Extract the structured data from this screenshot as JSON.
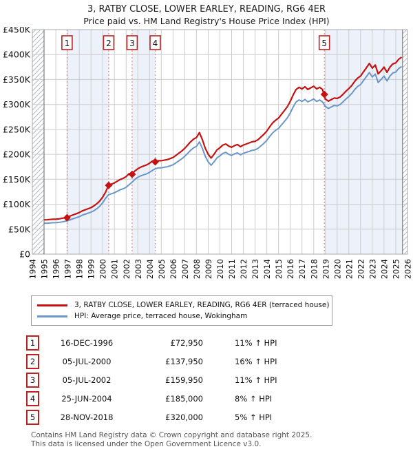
{
  "title": "3, RATBY CLOSE, LOWER EARLEY, READING, RG6 4ER",
  "subtitle": "Price paid vs. HM Land Registry's House Price Index (HPI)",
  "legend": {
    "property_label": "3, RATBY CLOSE, LOWER EARLEY, READING, RG6 4ER (terraced house)",
    "hpi_label": "HPI: Average price, terraced house, Wokingham"
  },
  "colors": {
    "property_line": "#c41111",
    "hpi_line": "#6a96c8",
    "sale_dashed_line": "#f28080",
    "badge_border": "#bb2222",
    "grid": "#cccccc",
    "plot_border": "#aaaaaa",
    "data_edge": "#666666",
    "ownership_band": "#edf2fa",
    "hatch_line": "#b4b8c0",
    "footer_text": "#555555"
  },
  "transactions": [
    {
      "num": "1",
      "date": "16-DEC-1996",
      "price": "£72,950",
      "hpi_diff": "11% ↑ HPI"
    },
    {
      "num": "2",
      "date": "05-JUL-2000",
      "price": "£137,950",
      "hpi_diff": "16% ↑ HPI"
    },
    {
      "num": "3",
      "date": "05-JUL-2002",
      "price": "£159,950",
      "hpi_diff": "11% ↑ HPI"
    },
    {
      "num": "4",
      "date": "25-JUN-2004",
      "price": "£185,000",
      "hpi_diff": "8% ↑ HPI"
    },
    {
      "num": "5",
      "date": "28-NOV-2018",
      "price": "£320,000",
      "hpi_diff": "5% ↑ HPI"
    }
  ],
  "footer": {
    "line1": "Contains HM Land Registry data © Crown copyright and database right 2025.",
    "line2": "This data is licensed under the Open Government Licence v3.0."
  },
  "chart_data": {
    "type": "line",
    "xlim": [
      1994,
      2026
    ],
    "ylim": [
      0,
      450000
    ],
    "x_ticks": [
      1994,
      1995,
      1996,
      1997,
      1998,
      1999,
      2000,
      2001,
      2002,
      2003,
      2004,
      2005,
      2006,
      2007,
      2008,
      2009,
      2010,
      2011,
      2012,
      2013,
      2014,
      2015,
      2016,
      2017,
      2018,
      2019,
      2020,
      2021,
      2022,
      2023,
      2024,
      2025,
      2026
    ],
    "y_ticks": [
      {
        "value_k": 450,
        "label": "£450K"
      },
      {
        "value_k": 400,
        "label": "£400K"
      },
      {
        "value_k": 350,
        "label": "£350K"
      },
      {
        "value_k": 300,
        "label": "£300K"
      },
      {
        "value_k": 250,
        "label": "£250K"
      },
      {
        "value_k": 200,
        "label": "£200K"
      },
      {
        "value_k": 150,
        "label": "£150K"
      },
      {
        "value_k": 100,
        "label": "£100K"
      },
      {
        "value_k": 50,
        "label": "£50K"
      },
      {
        "value_k": 0,
        "label": "£0"
      }
    ],
    "x_start": 1995.0,
    "x_step": 0.25,
    "series": [
      {
        "name": "3, RATBY CLOSE, LOWER EARLEY, READING, RG6 4ER (terraced house)",
        "color_key": "property_line",
        "values_k": [
          68.8,
          68.8,
          69.4,
          69.9,
          69.9,
          70.5,
          71.6,
          72.7,
          74.4,
          76.6,
          78.8,
          81.0,
          83.3,
          86.6,
          88.8,
          91.0,
          93.2,
          96.6,
          101.0,
          106.6,
          114.3,
          124.3,
          138.0,
          140.4,
          142.7,
          146.2,
          149.6,
          152.0,
          155.4,
          161.2,
          160.0,
          166.7,
          171.1,
          174.4,
          176.7,
          178.9,
          182.2,
          186.6,
          185.0,
          187.2,
          187.2,
          188.3,
          189.4,
          191.5,
          193.7,
          198.0,
          202.3,
          206.7,
          212.1,
          218.6,
          225.1,
          230.5,
          233.7,
          243.5,
          229.4,
          212.1,
          200.2,
          192.6,
          200.2,
          208.8,
          213.2,
          218.6,
          220.7,
          216.4,
          214.2,
          217.5,
          219.6,
          215.3,
          218.6,
          220.7,
          222.9,
          225.1,
          226.1,
          229.4,
          234.8,
          240.2,
          246.7,
          255.4,
          262.9,
          268.3,
          272.7,
          280.2,
          287.8,
          295.4,
          306.2,
          319.2,
          330.0,
          334.3,
          331.1,
          335.4,
          330.0,
          333.3,
          336.5,
          331.1,
          334.3,
          330.0,
          310.8,
          306.6,
          309.8,
          312.9,
          311.9,
          315.0,
          320.3,
          326.6,
          331.8,
          338.1,
          346.5,
          352.8,
          357.0,
          365.4,
          373.8,
          382.2,
          372.8,
          379.1,
          361.2,
          367.5,
          374.9,
          364.4,
          374.9,
          381.2,
          383.3,
          390.6,
          394.8
        ]
      },
      {
        "name": "HPI: Average price, terraced house, Wokingham",
        "color_key": "hpi_line",
        "values_k": [
          62.0,
          62.0,
          62.5,
          63.0,
          63.0,
          63.5,
          64.5,
          65.5,
          67.0,
          69.0,
          71.0,
          73.0,
          75.0,
          78.0,
          80.0,
          82.0,
          84.0,
          87.0,
          91.0,
          96.0,
          103.0,
          112.0,
          119.0,
          121.0,
          123.0,
          126.0,
          129.0,
          131.0,
          134.0,
          139.0,
          144.0,
          150.0,
          154.0,
          157.0,
          159.0,
          161.0,
          164.0,
          168.0,
          171.0,
          173.0,
          173.0,
          174.0,
          175.0,
          177.0,
          179.0,
          183.0,
          187.0,
          191.0,
          196.0,
          202.0,
          208.0,
          213.0,
          216.0,
          225.0,
          212.0,
          196.0,
          185.0,
          178.0,
          185.0,
          193.0,
          197.0,
          202.0,
          204.0,
          200.0,
          198.0,
          201.0,
          203.0,
          199.0,
          202.0,
          204.0,
          206.0,
          208.0,
          209.0,
          212.0,
          217.0,
          222.0,
          228.0,
          236.0,
          243.0,
          248.0,
          252.0,
          259.0,
          266.0,
          273.0,
          283.0,
          295.0,
          305.0,
          309.0,
          306.0,
          310.0,
          305.0,
          308.0,
          311.0,
          306.0,
          309.0,
          305.0,
          296.0,
          292.0,
          295.0,
          298.0,
          297.0,
          300.0,
          305.0,
          311.0,
          316.0,
          322.0,
          330.0,
          336.0,
          340.0,
          348.0,
          356.0,
          364.0,
          355.0,
          361.0,
          344.0,
          350.0,
          357.0,
          347.0,
          357.0,
          363.0,
          365.0,
          372.0,
          376.0
        ]
      }
    ],
    "sales": [
      {
        "num": "1",
        "date": "16-DEC-1996",
        "year": 1996.96,
        "price_k": 72.95
      },
      {
        "num": "2",
        "date": "05-JUL-2000",
        "year": 2000.51,
        "price_k": 137.95
      },
      {
        "num": "3",
        "date": "05-JUL-2002",
        "year": 2002.51,
        "price_k": 159.95
      },
      {
        "num": "4",
        "date": "25-JUN-2004",
        "year": 2004.48,
        "price_k": 185.0
      },
      {
        "num": "5",
        "date": "28-NOV-2018",
        "year": 2018.91,
        "price_k": 320.0
      }
    ],
    "ownership_bands": [
      [
        1996.96,
        2000.51
      ],
      [
        2002.51,
        2004.48
      ],
      [
        2018.91,
        2025.58
      ]
    ],
    "no_data_hatch": [
      [
        1994,
        1995
      ],
      [
        2025.58,
        2026
      ]
    ],
    "grid": true,
    "legend_position": "below"
  }
}
